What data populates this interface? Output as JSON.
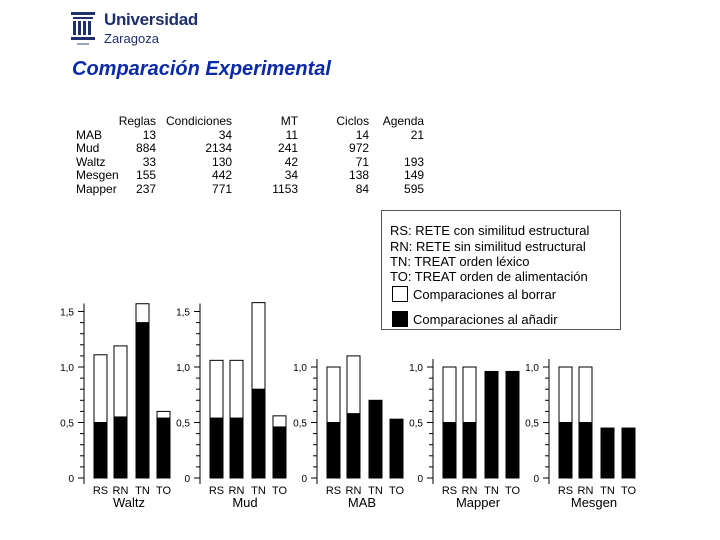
{
  "logo": {
    "line1": "Universidad",
    "line2": "Zaragoza"
  },
  "title": "Comparación Experimental",
  "table": {
    "headers": [
      "",
      "Reglas",
      "Condiciones",
      "MT",
      "Ciclos",
      "Agenda"
    ],
    "rows": [
      [
        "MAB",
        "13",
        "34",
        "11",
        "14",
        "21"
      ],
      [
        "Mud",
        "884",
        "2134",
        "241",
        "972",
        ""
      ],
      [
        "Waltz",
        "33",
        "130",
        "42",
        "71",
        "193"
      ],
      [
        "Mesgen",
        "155",
        "442",
        "34",
        "138",
        "149"
      ],
      [
        "Mapper",
        "237",
        "771",
        "1153",
        "84",
        "595"
      ]
    ]
  },
  "legend": {
    "lines": [
      "RS: RETE con similitud estructural",
      "RN: RETE sin similitud estructural",
      "TN: TREAT orden léxico",
      "TO: TREAT orden de alimentación"
    ],
    "series": [
      "Comparaciones al borrar",
      "Comparaciones al añadir"
    ]
  },
  "chart_data": [
    {
      "type": "bar",
      "stacked": true,
      "title": "Waltz",
      "categories": [
        "RS",
        "RN",
        "TN",
        "TO"
      ],
      "series": [
        {
          "name": "Comparaciones al añadir",
          "values": [
            0.5,
            0.55,
            1.4,
            0.54
          ]
        },
        {
          "name": "Comparaciones al borrar",
          "values": [
            0.61,
            0.64,
            0.17,
            0.06
          ]
        }
      ],
      "yticks": [
        "0",
        "0,5",
        "1,0",
        "1,5"
      ],
      "ylim": [
        0,
        1.5
      ]
    },
    {
      "type": "bar",
      "stacked": true,
      "title": "Mud",
      "categories": [
        "RS",
        "RN",
        "TN",
        "TO"
      ],
      "series": [
        {
          "name": "Comparaciones al añadir",
          "values": [
            0.54,
            0.54,
            0.8,
            0.46
          ]
        },
        {
          "name": "Comparaciones al borrar",
          "values": [
            0.52,
            0.52,
            0.78,
            0.1
          ]
        }
      ],
      "yticks": [
        "0",
        "0,5",
        "1,0",
        "1,5"
      ],
      "ylim": [
        0,
        1.5
      ]
    },
    {
      "type": "bar",
      "stacked": true,
      "title": "MAB",
      "categories": [
        "RS",
        "RN",
        "TN",
        "TO"
      ],
      "series": [
        {
          "name": "Comparaciones al añadir",
          "values": [
            0.5,
            0.58,
            0.7,
            0.53
          ]
        },
        {
          "name": "Comparaciones al borrar",
          "values": [
            0.5,
            0.52,
            0,
            0
          ]
        }
      ],
      "yticks": [
        "0",
        "0,5",
        "1,0"
      ],
      "ylim": [
        0,
        1.0
      ]
    },
    {
      "type": "bar",
      "stacked": true,
      "title": "Mapper",
      "categories": [
        "RS",
        "RN",
        "TN",
        "TO"
      ],
      "series": [
        {
          "name": "Comparaciones al añadir",
          "values": [
            0.5,
            0.5,
            0.96,
            0.96
          ]
        },
        {
          "name": "Comparaciones al borrar",
          "values": [
            0.5,
            0.5,
            0,
            0
          ]
        }
      ],
      "yticks": [
        "0",
        "0,5",
        "1,0"
      ],
      "ylim": [
        0,
        1.0
      ]
    },
    {
      "type": "bar",
      "stacked": true,
      "title": "Mesgen",
      "categories": [
        "RS",
        "RN",
        "TN",
        "TO"
      ],
      "series": [
        {
          "name": "Comparaciones al añadir",
          "values": [
            0.5,
            0.5,
            0.45,
            0.45
          ]
        },
        {
          "name": "Comparaciones al borrar",
          "values": [
            0.5,
            0.5,
            0,
            0
          ]
        }
      ],
      "yticks": [
        "0",
        "0,5",
        "1,0"
      ],
      "ylim": [
        0,
        1.0
      ]
    }
  ],
  "colors": {
    "title": "#0b2aa8",
    "logo": "#1e2f6b",
    "add": "#000000",
    "delete": "#ffffff"
  }
}
